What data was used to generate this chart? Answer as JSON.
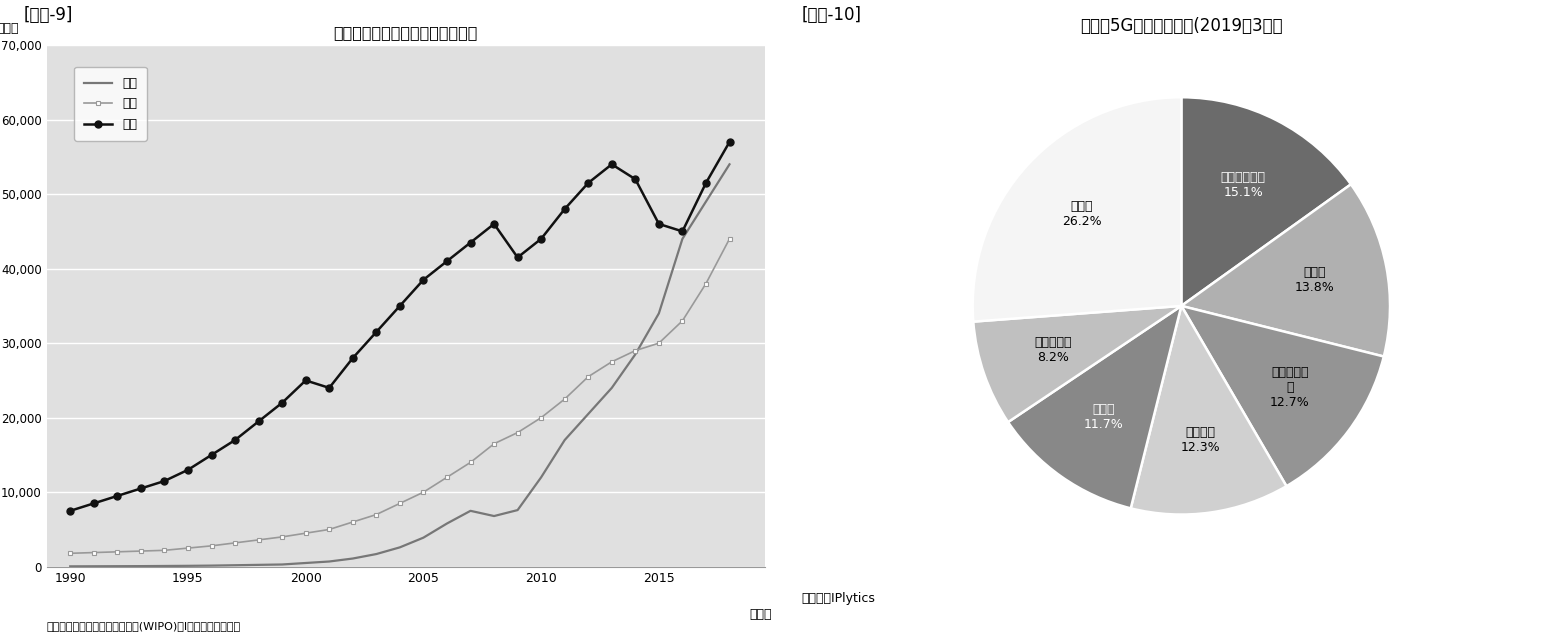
{
  "fig9_title": "日米中の国際特許出願の推移比較",
  "fig9_ylabel": "（件）",
  "fig9_xlabel_note": "（資料））世界知的所有権機関(WIPO)のIデータを元に作成",
  "fig9_year_label": "（年）",
  "fig9_ylim": [
    0,
    70000
  ],
  "fig9_yticks": [
    0,
    10000,
    20000,
    30000,
    40000,
    50000,
    60000,
    70000
  ],
  "fig9_ytick_labels": [
    "0",
    "10,000",
    "20,000",
    "30,000",
    "40,000",
    "50,000",
    "60,000",
    "70,000"
  ],
  "fig9_xticks": [
    1990,
    1995,
    2000,
    2005,
    2010,
    2015
  ],
  "fig9_bg_color": "#e0e0e0",
  "fig9_china_years": [
    1990,
    1991,
    1992,
    1993,
    1994,
    1995,
    1996,
    1997,
    1998,
    1999,
    2000,
    2001,
    2002,
    2003,
    2004,
    2005,
    2006,
    2007,
    2008,
    2009,
    2010,
    2011,
    2012,
    2013,
    2014,
    2015,
    2016,
    2017,
    2018
  ],
  "fig9_china_values": [
    50,
    60,
    70,
    80,
    100,
    120,
    150,
    200,
    250,
    300,
    500,
    700,
    1100,
    1700,
    2600,
    3900,
    5800,
    7500,
    6800,
    7600,
    12000,
    17000,
    20500,
    24000,
    28500,
    34000,
    44000,
    49000,
    54000
  ],
  "fig9_japan_years": [
    1990,
    1991,
    1992,
    1993,
    1994,
    1995,
    1996,
    1997,
    1998,
    1999,
    2000,
    2001,
    2002,
    2003,
    2004,
    2005,
    2006,
    2007,
    2008,
    2009,
    2010,
    2011,
    2012,
    2013,
    2014,
    2015,
    2016,
    2017,
    2018
  ],
  "fig9_japan_values": [
    1800,
    1900,
    2000,
    2100,
    2200,
    2500,
    2800,
    3200,
    3600,
    4000,
    4500,
    5000,
    6000,
    7000,
    8500,
    10000,
    12000,
    14000,
    16500,
    18000,
    20000,
    22500,
    25500,
    27500,
    29000,
    30000,
    33000,
    38000,
    44000
  ],
  "fig9_usa_years": [
    1990,
    1991,
    1992,
    1993,
    1994,
    1995,
    1996,
    1997,
    1998,
    1999,
    2000,
    2001,
    2002,
    2003,
    2004,
    2005,
    2006,
    2007,
    2008,
    2009,
    2010,
    2011,
    2012,
    2013,
    2014,
    2015,
    2016,
    2017,
    2018
  ],
  "fig9_usa_values": [
    7500,
    8500,
    9500,
    10500,
    11500,
    13000,
    15000,
    17000,
    19500,
    22000,
    25000,
    24000,
    28000,
    31500,
    35000,
    38500,
    41000,
    43500,
    46000,
    41500,
    44000,
    48000,
    51500,
    54000,
    52000,
    46000,
    45000,
    51500,
    57000
  ],
  "fig9_china_color": "#777777",
  "fig9_japan_color": "#999999",
  "fig9_usa_color": "#111111",
  "fig9_legend": [
    "中国",
    "日本",
    "米国"
  ],
  "fig9_label9": "[図表-9]",
  "fig10_label": "[図表-10]",
  "fig10_title": "世界の5G標準必須特許(2019年3月）",
  "fig10_values": [
    15.1,
    13.8,
    12.7,
    12.3,
    11.7,
    8.2,
    26.2
  ],
  "fig10_label_lines1": [
    "ファーウェイ",
    "ノキア",
    "サムスン電",
    "ＬＧ電子",
    "ＺＴＥ",
    "クアルコム",
    "その他"
  ],
  "fig10_label_lines2": [
    "15.1%",
    "13.8%",
    "子\n12.7%",
    "12.3%",
    "11.7%",
    "8.2%",
    "26.2%"
  ],
  "fig10_colors": [
    "#6b6b6b",
    "#b0b0b0",
    "#949494",
    "#d0d0d0",
    "#888888",
    "#c0c0c0",
    "#f5f5f5"
  ],
  "fig10_source": "（出典）IPlytics",
  "fig10_startangle": 90
}
